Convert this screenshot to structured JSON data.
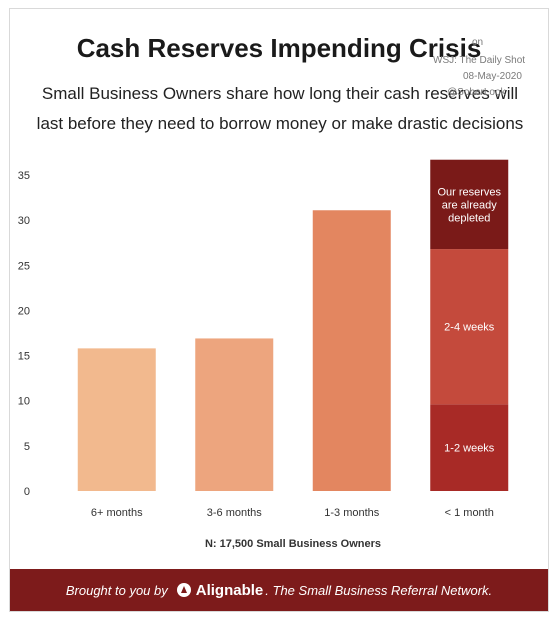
{
  "chart_data": {
    "type": "bar",
    "title": "Cash Reserves Impending Crisis",
    "subtitle": "Small Business Owners share how long their cash reserves will last before they need to borrow money or make drastic decisions",
    "categories": [
      "6+ months",
      "3-6 months",
      "1-3 months",
      "< 1 month"
    ],
    "values": [
      15.8,
      16.9,
      31.1,
      36.7
    ],
    "stacked_last": [
      {
        "name": "1-2 weeks",
        "value": 9.6,
        "color": "#a82a26"
      },
      {
        "name": "2-4 weeks",
        "value": 17.2,
        "color": "#c44a3c"
      },
      {
        "name": "Our reserves are already depleted",
        "value": 9.9,
        "color": "#7a1a18"
      }
    ],
    "colors": [
      "#f2b98e",
      "#eda57e",
      "#e38660"
    ],
    "ylim": [
      0,
      37
    ],
    "yticks": [
      0,
      5,
      10,
      15,
      20,
      25,
      30,
      35
    ],
    "xlabel": "",
    "ylabel": "",
    "grid": false,
    "note": "N: 17,500 Small Business Owners"
  },
  "watermark": {
    "line1": "on",
    "line2": "WSJ: The Daily Shot",
    "line3": "08-May-2020",
    "line4": "@SoberLook"
  },
  "footer": {
    "prefix": "Brought to you by",
    "brand": "Alignable",
    "suffix": ". The Small Business Referral Network.",
    "background": "#7d1b1b"
  }
}
